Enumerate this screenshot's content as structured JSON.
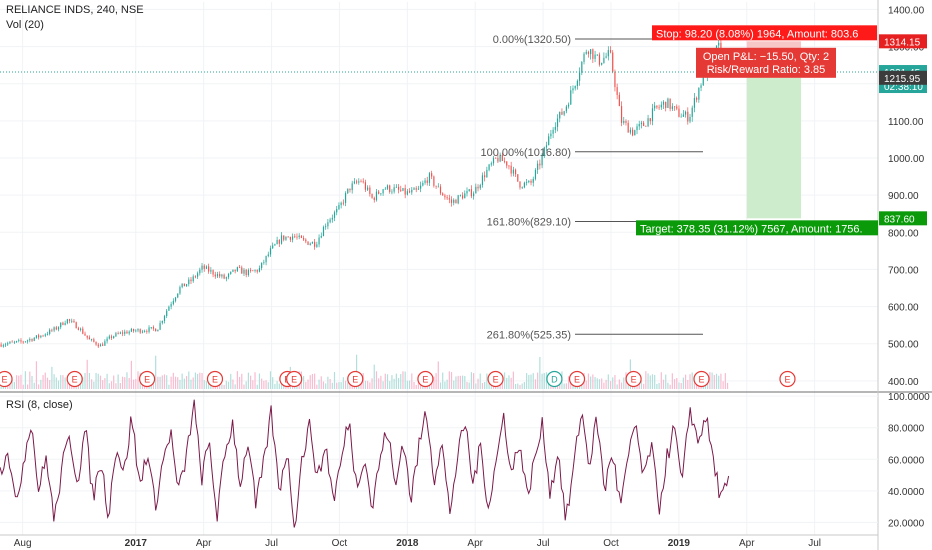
{
  "symbol_title": "RELIANCE INDS, 240, NSE",
  "volume_label": "Vol (20)",
  "rsi_label": "RSI (8, close)",
  "colors": {
    "up": "#26a69a",
    "down": "#ef5350",
    "rsi": "#7b1a4a",
    "fib": "#555555",
    "stop": "#ff0000",
    "target": "#00a000",
    "dotted": "#26a69a"
  },
  "chart_data": [
    {
      "type": "candlestick",
      "title": "RELIANCE INDS, 240, NSE",
      "y_ticks": [
        400,
        500,
        600,
        700,
        800,
        900,
        1000,
        1100,
        1200,
        1300,
        1400
      ],
      "y_tick_labels": [
        "400.00",
        "500.00",
        "600.00",
        "700.00",
        "800.00",
        "900.00",
        "1000.00",
        "1100.00",
        "1200.00",
        "1300.00",
        "1400.00"
      ],
      "ylim": [
        370,
        1420
      ],
      "x_ticks": [
        {
          "label": "Aug",
          "t": 0.0
        },
        {
          "label": "2017",
          "t": 5.0
        },
        {
          "label": "Apr",
          "t": 8.0
        },
        {
          "label": "Jul",
          "t": 11.0
        },
        {
          "label": "Oct",
          "t": 14.0
        },
        {
          "label": "2018",
          "t": 17.0
        },
        {
          "label": "Apr",
          "t": 20.0
        },
        {
          "label": "Jul",
          "t": 23.0
        },
        {
          "label": "Oct",
          "t": 26.0
        },
        {
          "label": "2019",
          "t": 29.0
        },
        {
          "label": "Apr",
          "t": 32.0
        },
        {
          "label": "Jul",
          "t": 35.0
        }
      ],
      "xlim": [
        -1.0,
        37.8
      ],
      "close_path": [
        [
          -1.0,
          498
        ],
        [
          0.0,
          505
        ],
        [
          0.8,
          520
        ],
        [
          1.5,
          540
        ],
        [
          2.0,
          565
        ],
        [
          2.5,
          545
        ],
        [
          3.0,
          510
        ],
        [
          3.5,
          495
        ],
        [
          4.0,
          520
        ],
        [
          4.5,
          530
        ],
        [
          5.0,
          535
        ],
        [
          6.0,
          540
        ],
        [
          6.5,
          600
        ],
        [
          7.0,
          650
        ],
        [
          7.5,
          670
        ],
        [
          8.0,
          705
        ],
        [
          8.5,
          690
        ],
        [
          9.0,
          675
        ],
        [
          9.5,
          700
        ],
        [
          10.0,
          690
        ],
        [
          10.5,
          700
        ],
        [
          11.0,
          750
        ],
        [
          11.5,
          785
        ],
        [
          12.0,
          790
        ],
        [
          12.5,
          775
        ],
        [
          13.0,
          770
        ],
        [
          13.5,
          830
        ],
        [
          14.0,
          860
        ],
        [
          14.5,
          920
        ],
        [
          15.0,
          940
        ],
        [
          15.5,
          890
        ],
        [
          16.0,
          920
        ],
        [
          16.5,
          915
        ],
        [
          17.0,
          905
        ],
        [
          17.5,
          910
        ],
        [
          18.0,
          950
        ],
        [
          18.5,
          910
        ],
        [
          19.0,
          880
        ],
        [
          19.5,
          900
        ],
        [
          20.0,
          910
        ],
        [
          20.5,
          960
        ],
        [
          21.0,
          1000
        ],
        [
          21.5,
          985
        ],
        [
          22.0,
          930
        ],
        [
          22.5,
          930
        ],
        [
          23.0,
          1000
        ],
        [
          23.5,
          1090
        ],
        [
          24.0,
          1130
        ],
        [
          24.5,
          1210
        ],
        [
          25.0,
          1300
        ],
        [
          25.5,
          1260
        ],
        [
          26.0,
          1280
        ],
        [
          26.2,
          1210
        ],
        [
          26.5,
          1100
        ],
        [
          27.0,
          1070
        ],
        [
          27.5,
          1090
        ],
        [
          28.0,
          1130
        ],
        [
          28.5,
          1150
        ],
        [
          29.0,
          1120
        ],
        [
          29.5,
          1110
        ],
        [
          30.0,
          1200
        ],
        [
          30.5,
          1260
        ],
        [
          30.8,
          1300
        ],
        [
          31.0,
          1270
        ],
        [
          31.2,
          1232
        ]
      ],
      "last_price": 1231.45,
      "last_price_label": "1231.45",
      "countdown_label": "02:38:10",
      "high_price_label": "1314.15",
      "low_price_label": "1215.95",
      "target_price_label": "837.60",
      "fibonacci": [
        {
          "label": "0.00%(1320.50)",
          "value": 1320.5
        },
        {
          "label": "100.00%(1016.80)",
          "value": 1016.8
        },
        {
          "label": "161.80%(829.10)",
          "value": 829.1
        },
        {
          "label": "261.80%(525.35)",
          "value": 525.35
        }
      ],
      "position": {
        "entry": 1215.95,
        "stop": 1314.15,
        "target": 837.6,
        "t_start": 32.0,
        "t_end": 34.4,
        "stop_label": "Stop: 98.20 (8.08%) 1964, Amount: 803.6",
        "pnl_label": "Open P&L: −15.50, Qty: 2",
        "risk_reward_label": "Risk/Reward Ratio: 3.85",
        "target_label": "Target: 378.35 (31.12%) 7567, Amount: 1756."
      },
      "earnings_markers": [
        {
          "t": -0.8,
          "label": "E"
        },
        {
          "t": 2.3,
          "label": "E"
        },
        {
          "t": 5.5,
          "label": "E"
        },
        {
          "t": 8.5,
          "label": "E"
        },
        {
          "t": 11.7,
          "label": "E"
        },
        {
          "t": 12.0,
          "label": "E"
        },
        {
          "t": 14.7,
          "label": "E"
        },
        {
          "t": 17.8,
          "label": "E"
        },
        {
          "t": 20.9,
          "label": "E"
        },
        {
          "t": 23.5,
          "label": "D"
        },
        {
          "t": 24.5,
          "label": "E"
        },
        {
          "t": 27.0,
          "label": "E"
        },
        {
          "t": 30.0,
          "label": "E"
        },
        {
          "t": 33.8,
          "label": "E"
        }
      ]
    },
    {
      "type": "line",
      "title": "RSI (8, close)",
      "y_ticks": [
        20,
        40,
        60,
        80,
        100
      ],
      "y_tick_labels": [
        "20.0000",
        "40.0000",
        "60.0000",
        "80.0000",
        "100.0000"
      ],
      "ylim": [
        12,
        102
      ],
      "series": [
        {
          "values": [
            52,
            68,
            30,
            58,
            85,
            40,
            62,
            20,
            55,
            74,
            46,
            80,
            35,
            60,
            25,
            70,
            50,
            88,
            42,
            66,
            30,
            58,
            78,
            38,
            60,
            96,
            48,
            70,
            24,
            62,
            84,
            44,
            72,
            30,
            56,
            90,
            40,
            66,
            18,
            62,
            82,
            46,
            70,
            34,
            58,
            86,
            42,
            64,
            28,
            60,
            80,
            40,
            74,
            34,
            66,
            92,
            48,
            70,
            26,
            60,
            84,
            44,
            68,
            30,
            58,
            88,
            50,
            72,
            36,
            60,
            82,
            38,
            66,
            20,
            54,
            92,
            56,
            86,
            40,
            66,
            30,
            58,
            84,
            46,
            70,
            28,
            60,
            80,
            42,
            94,
            70,
            88,
            60,
            35,
            44
          ]
        }
      ]
    }
  ]
}
